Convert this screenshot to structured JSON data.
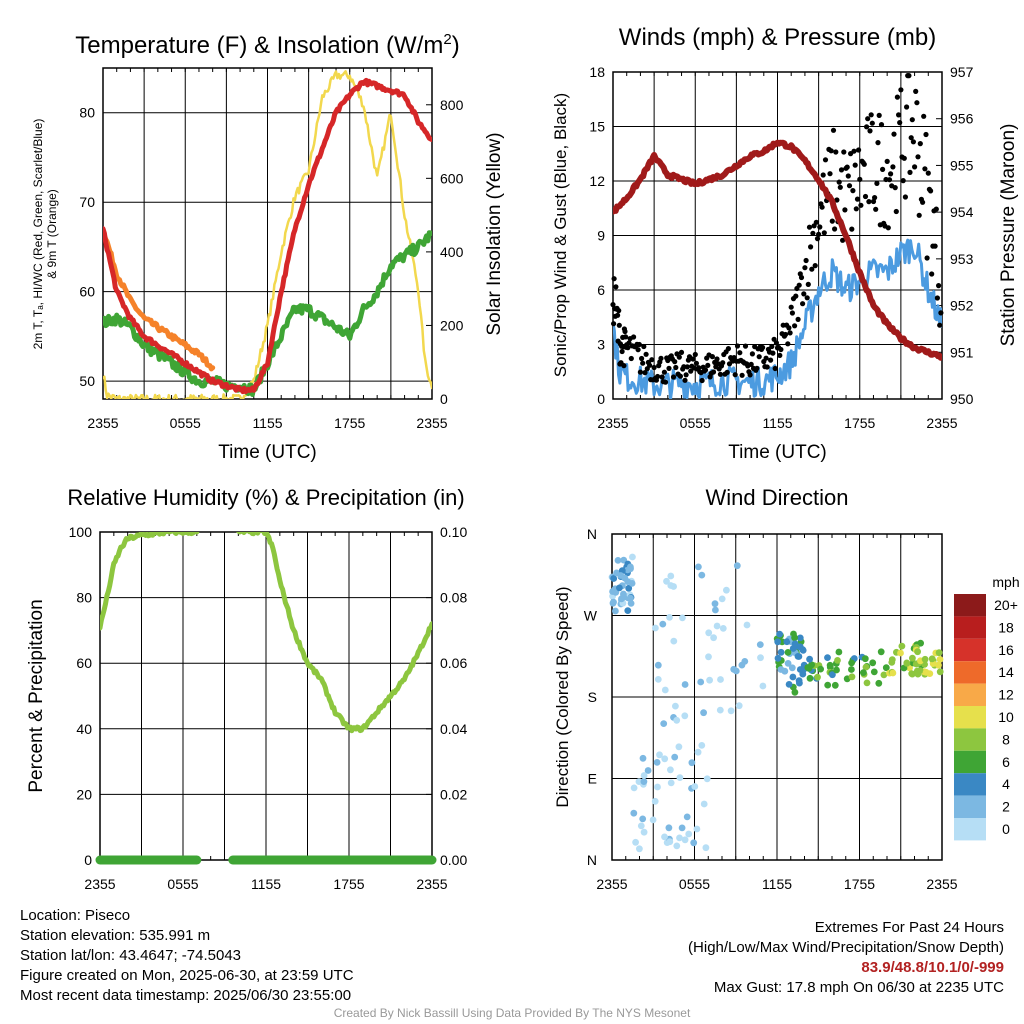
{
  "colors": {
    "temp_2m": "#d62728",
    "dewpoint": "#3fa535",
    "heat_index": "#1f4fa8",
    "temp_9m": "#f5822a",
    "insolation": "#f2d84e",
    "wind_speed": "#4c9be0",
    "gust": "#000000",
    "pressure": "#a01a1a",
    "rh": "#8dc63f",
    "precip": "#3fa535"
  },
  "panels": {
    "temp": {
      "title": "Temperature (F) & Insolation (W/m",
      "title_sup": "2",
      "title_end": ")",
      "ylabel_line1": "2m T, Tₐ, HI/WC (Red, Green, Scarlet/Blue)",
      "ylabel_line2": "& 9m T (Orange)",
      "ylabel2": "Solar Insolation (Yellow)",
      "xlabel": "Time (UTC)"
    },
    "wind": {
      "title": "Winds (mph) & Pressure (mb)",
      "ylabel": "Sonic/Prop Wind & Gust (Blue, Black)",
      "ylabel2": "Station Pressure (Maroon)",
      "xlabel": "Time (UTC)"
    },
    "rh": {
      "title": "Relative Humidity (%) & Precipitation (in)",
      "ylabel": "Percent & Precipitation"
    },
    "wdir": {
      "title": "Wind Direction",
      "ylabel": "Direction (Colored By Speed)",
      "legend_title": "mph"
    }
  },
  "x_ticks": [
    "2355",
    "0555",
    "1155",
    "1755",
    "2355"
  ],
  "chart_data": [
    {
      "type": "line",
      "title": "Temperature (F) & Insolation (W/m2)",
      "xlabel": "Time (UTC)",
      "ylabel": "2m T, Td, HI/WC (Red, Green, Scarlet/Blue) & 9m T (Orange)",
      "ylabel2": "Solar Insolation (Yellow)",
      "x_hours": [
        0,
        1,
        2,
        3,
        4,
        5,
        6,
        7,
        8,
        9,
        10,
        11,
        12,
        13,
        14,
        15,
        16,
        17,
        18,
        19,
        20,
        21,
        22,
        23,
        24
      ],
      "xlim": [
        0,
        24
      ],
      "ylim": [
        48,
        85
      ],
      "y_ticks": [
        50,
        60,
        70,
        80
      ],
      "y2lim": [
        0,
        900
      ],
      "y2_ticks": [
        0,
        200,
        400,
        600,
        800
      ],
      "grid": true,
      "series": [
        {
          "name": "2m T",
          "axis": "left",
          "color": "#d62728",
          "x": [
            0,
            1,
            2,
            3,
            4,
            5,
            6,
            7,
            8,
            9,
            10,
            11,
            12,
            13,
            14,
            15,
            16,
            17,
            18,
            19,
            20,
            21,
            22,
            23,
            24
          ],
          "values": [
            67,
            60,
            57,
            55,
            54,
            53,
            52,
            51,
            50,
            49.5,
            49,
            49,
            52,
            60,
            67,
            72,
            76,
            80,
            82,
            83.5,
            83,
            82.5,
            82,
            79,
            77
          ]
        },
        {
          "name": "9m T",
          "axis": "left",
          "color": "#f5822a",
          "x": [
            0,
            1,
            2,
            3,
            4,
            5,
            6,
            7,
            8
          ],
          "values": [
            67,
            62,
            59,
            57,
            56,
            55,
            54,
            53,
            51.5
          ]
        },
        {
          "name": "Td",
          "axis": "left",
          "color": "#3fa535",
          "x": [
            0,
            1,
            2,
            3,
            4,
            5,
            6,
            7,
            8,
            9,
            10,
            11,
            12,
            13,
            14,
            15,
            16,
            17,
            18,
            19,
            20,
            21,
            22,
            23,
            24
          ],
          "values": [
            56.5,
            57,
            56,
            54,
            53,
            52,
            51,
            50,
            50,
            49.5,
            49.5,
            49,
            52,
            55,
            58,
            58,
            57,
            56,
            55,
            58,
            60,
            63,
            64,
            65,
            66.5
          ]
        },
        {
          "name": "Solar Insolation",
          "axis": "right",
          "color": "#f2d84e",
          "x": [
            0,
            0.3,
            1,
            2,
            3,
            4,
            5,
            6,
            7,
            8,
            9,
            10,
            11,
            12,
            13,
            14,
            15,
            16,
            17,
            18,
            19,
            20,
            21,
            22,
            23,
            23.5,
            24
          ],
          "values": [
            70,
            10,
            0,
            0,
            0,
            0,
            0,
            0,
            0,
            0,
            0,
            0,
            50,
            200,
            400,
            550,
            620,
            820,
            880,
            880,
            800,
            600,
            780,
            500,
            300,
            100,
            30
          ]
        }
      ]
    },
    {
      "type": "line",
      "title": "Winds (mph) & Pressure (mb)",
      "xlabel": "Time (UTC)",
      "ylabel": "Sonic/Prop Wind & Gust (Blue, Black)",
      "ylabel2": "Station Pressure (Maroon)",
      "xlim": [
        0,
        24
      ],
      "ylim": [
        0,
        18
      ],
      "y_ticks": [
        0,
        3,
        6,
        9,
        12,
        15,
        18
      ],
      "y2lim": [
        950,
        957
      ],
      "y2_ticks": [
        950,
        951,
        952,
        953,
        954,
        955,
        956,
        957
      ],
      "grid": true,
      "series": [
        {
          "name": "Wind Speed",
          "axis": "left",
          "color": "#4c9be0",
          "x": [
            0,
            0.5,
            1,
            2,
            3,
            4,
            5,
            6,
            7,
            8,
            9,
            10,
            11,
            12,
            13,
            14,
            15,
            16,
            17,
            18,
            19,
            20,
            21,
            22,
            23,
            24
          ],
          "values": [
            4,
            1.5,
            1.2,
            1,
            0.8,
            0.8,
            0.9,
            0.8,
            0.9,
            1,
            1,
            0.9,
            1,
            1.3,
            2,
            4,
            6,
            7,
            6,
            6.5,
            7,
            7,
            8,
            8.5,
            6,
            4
          ]
        },
        {
          "name": "Gust",
          "axis": "left",
          "color": "#000000",
          "marker": "dot",
          "x": [
            0,
            0.5,
            1,
            2,
            3,
            4,
            5,
            6,
            7,
            8,
            9,
            10,
            11,
            12,
            13,
            14,
            15,
            16,
            17,
            18,
            19,
            20,
            21,
            22,
            23,
            24
          ],
          "values": [
            6,
            3,
            2.8,
            2.2,
            1.8,
            1.6,
            1.8,
            1.7,
            1.8,
            2,
            2.2,
            2,
            2.2,
            2.5,
            4,
            7,
            10,
            12,
            11,
            12,
            13,
            12.5,
            14,
            15,
            11,
            6
          ]
        },
        {
          "name": "Station Pressure",
          "axis": "right",
          "color": "#a01a1a",
          "x": [
            0,
            1,
            2,
            3,
            4,
            5,
            6,
            7,
            8,
            9,
            10,
            11,
            12,
            13,
            14,
            15,
            16,
            17,
            18,
            19,
            20,
            21,
            22,
            23,
            24
          ],
          "values": [
            954,
            954.3,
            954.7,
            955.2,
            954.8,
            954.7,
            954.6,
            954.7,
            954.8,
            955,
            955.2,
            955.3,
            955.5,
            955.4,
            955.1,
            954.7,
            954.2,
            953.5,
            952.7,
            952,
            951.6,
            951.3,
            951.1,
            951,
            950.9
          ]
        }
      ]
    },
    {
      "type": "line",
      "title": "Relative Humidity (%) & Precipitation (in)",
      "ylabel": "Percent & Precipitation",
      "xlim": [
        0,
        24
      ],
      "ylim": [
        0,
        100
      ],
      "y_ticks": [
        0,
        20,
        40,
        60,
        80,
        100
      ],
      "y2lim": [
        0,
        0.1
      ],
      "y2_ticks": [
        "0.00",
        "0.02",
        "0.04",
        "0.06",
        "0.08",
        "0.10"
      ],
      "grid": true,
      "series": [
        {
          "name": "Relative Humidity",
          "axis": "left",
          "color": "#8dc63f",
          "segments": [
            {
              "x": [
                0,
                0.5,
                1,
                1.5,
                2,
                3,
                4,
                5,
                6,
                7
              ],
              "values": [
                71,
                80,
                90,
                95,
                98,
                99,
                99.5,
                100,
                100,
                100
              ]
            },
            {
              "x": [
                10,
                11,
                12,
                12.5,
                13,
                14,
                15,
                16,
                17,
                18,
                19,
                20,
                21,
                22,
                23,
                24
              ],
              "values": [
                100,
                100,
                100,
                95,
                85,
                70,
                60,
                55,
                45,
                40,
                40,
                45,
                50,
                55,
                63,
                72
              ]
            }
          ]
        },
        {
          "name": "Precipitation",
          "axis": "right",
          "color": "#3fa535",
          "segments": [
            {
              "x": [
                0,
                7
              ],
              "values": [
                0,
                0
              ]
            },
            {
              "x": [
                9.6,
                24
              ],
              "values": [
                0,
                0
              ]
            }
          ]
        }
      ]
    },
    {
      "type": "scatter",
      "title": "Wind Direction",
      "ylabel": "Direction (Colored By Speed)",
      "xlim": [
        0,
        24
      ],
      "y_ticks": [
        "N",
        "E",
        "S",
        "W",
        "N"
      ],
      "ylim": [
        0,
        360
      ],
      "grid": true,
      "legend": {
        "title": "mph",
        "placement": "right",
        "levels": [
          "20+",
          "18",
          "16",
          "14",
          "12",
          "10",
          "8",
          "6",
          "4",
          "2",
          "0"
        ],
        "colors": [
          "#8c1a1a",
          "#b81e1e",
          "#d6322a",
          "#ee6a2a",
          "#f8a948",
          "#e6e04c",
          "#8dc63f",
          "#3fa535",
          "#3a88c4",
          "#7cb8e2",
          "#b6def5"
        ]
      },
      "clusters": [
        {
          "x_range": [
            0,
            1.5
          ],
          "dir_range": [
            270,
            340
          ],
          "speed_class": "2"
        },
        {
          "x_range": [
            1.5,
            7
          ],
          "dir_range": [
            10,
            130
          ],
          "speed_class": "0"
        },
        {
          "x_range": [
            3,
            11
          ],
          "dir_range": [
            150,
            340
          ],
          "speed_class": "0"
        },
        {
          "x_range": [
            12,
            14
          ],
          "dir_range": [
            185,
            250
          ],
          "speed_class": "4"
        },
        {
          "x_range": [
            14,
            20
          ],
          "dir_range": [
            190,
            230
          ],
          "speed_class": "6"
        },
        {
          "x_range": [
            20,
            24
          ],
          "dir_range": [
            205,
            240
          ],
          "speed_class": "8"
        }
      ]
    }
  ],
  "info": {
    "location": "Location: Piseco",
    "elevation": "Station elevation: 535.991 m",
    "latlon": "Station lat/lon: 43.4647; -74.5043",
    "created": "Figure created on Mon, 2025-06-30, at 23:59 UTC",
    "recent": "Most recent data timestamp: 2025/06/30 23:55:00"
  },
  "extremes": {
    "title": "Extremes For Past 24 Hours",
    "subtitle": "(High/Low/Max Wind/Precipitation/Snow Depth)",
    "values": "83.9/48.8/10.1/0/-999",
    "gust": "Max Gust: 17.8 mph On 06/30 at 2235 UTC"
  },
  "credit": "Created By Nick Bassill Using Data Provided By The NYS Mesonet"
}
